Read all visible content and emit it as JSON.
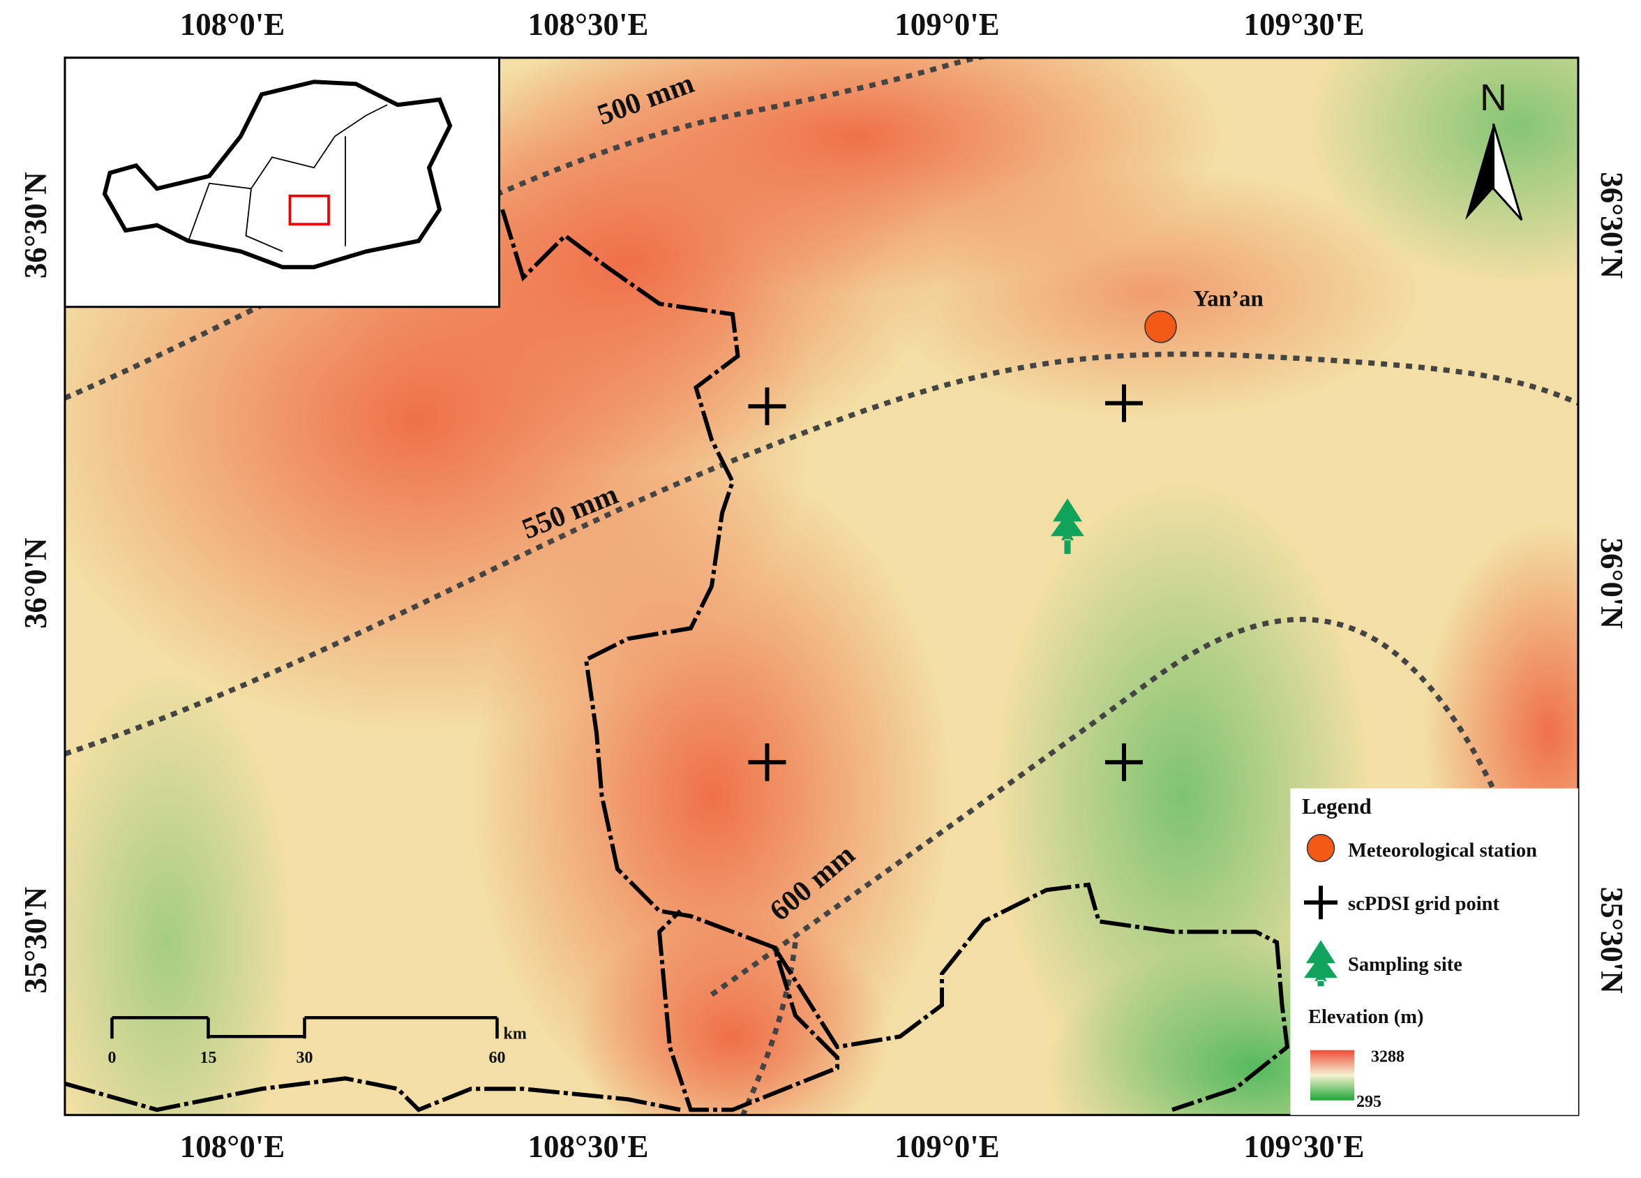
{
  "graticule": {
    "longitudes": [
      "108°0'E",
      "108°30'E",
      "109°0'E",
      "109°30'E"
    ],
    "latitudes": [
      "36°30'N",
      "36°0'N",
      "35°30'N"
    ]
  },
  "isohyets": [
    "500 mm",
    "550 mm",
    "600 mm"
  ],
  "places": {
    "station": "Yan’an",
    "north": "N"
  },
  "scale_bar": {
    "ticks": [
      0,
      15,
      30,
      60
    ],
    "unit": "km"
  },
  "legend": {
    "title": "Legend",
    "items": [
      "Meteorological station",
      "scPDSI grid point",
      "Sampling site"
    ],
    "elevation": {
      "title": "Elevation (m)",
      "max": 3288,
      "min": 295
    }
  }
}
